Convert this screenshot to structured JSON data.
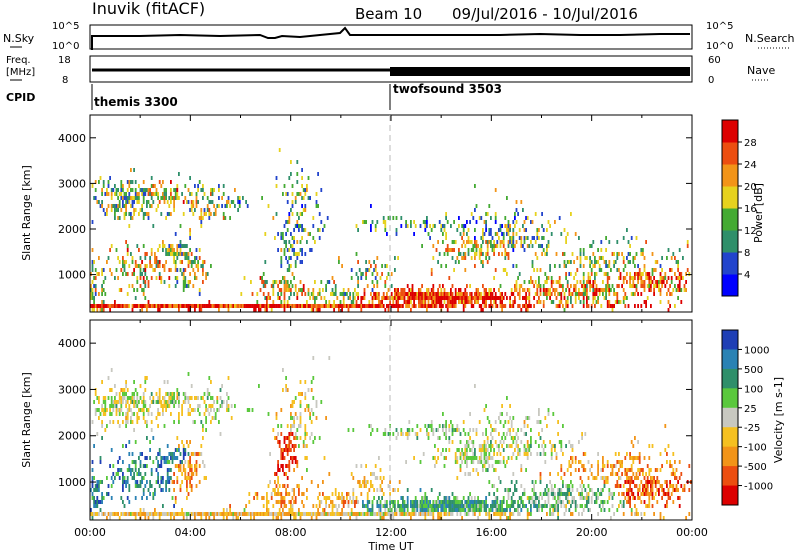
{
  "header": {
    "station": "Inuvik (fitACF)",
    "beam": "Beam 10",
    "date_range": "09/Jul/2016 - 10/Jul/2016"
  },
  "status_panels": {
    "nsky_label": "N.Sky",
    "nsearch_label": "N.Search",
    "nsky_ticks": [
      "10^5",
      "10^0"
    ],
    "nsearch_ticks": [
      "10^5",
      "10^0"
    ],
    "freq_label": "Freq.",
    "freq_unit": "[MHz]",
    "freq_ticks": [
      "18",
      "8"
    ],
    "nave_label": "Nave",
    "nave_ticks": [
      "60",
      "0"
    ],
    "cpid_label": "CPID",
    "cpid_segments": [
      {
        "name": "themis 3300",
        "start_hour": 0
      },
      {
        "name": "twofsound 3503",
        "start_hour": 12
      }
    ]
  },
  "chart_data": [
    {
      "type": "heatmap",
      "name": "power",
      "ylabel": "Slant Range [km]",
      "xlabel": "",
      "xlim": [
        0,
        24
      ],
      "ylim": [
        180,
        4500
      ],
      "yticks": [
        1000,
        2000,
        3000,
        4000
      ],
      "colorbar_label": "Power [dB]",
      "colorbar_ticks": [
        "4",
        "8",
        "12",
        "16",
        "20",
        "24",
        "28"
      ],
      "colorbar_colors": [
        "#0000ff",
        "#2244cc",
        "#2f8f6a",
        "#44aa33",
        "#e6d21e",
        "#f29418",
        "#ec4e10",
        "#dd0000"
      ]
    },
    {
      "type": "heatmap",
      "name": "velocity",
      "ylabel": "Slant Range [km]",
      "xlabel": "Time UT",
      "xlim": [
        0,
        24
      ],
      "ylim": [
        180,
        4500
      ],
      "yticks": [
        1000,
        2000,
        3000,
        4000
      ],
      "xticks": [
        "00:00",
        "04:00",
        "08:00",
        "12:00",
        "16:00",
        "20:00",
        "00:00"
      ],
      "colorbar_label": "Velocity [m s-1]",
      "colorbar_ticks": [
        "1000",
        "500",
        "100",
        "25",
        "-25",
        "-100",
        "-500",
        "-1000"
      ],
      "colorbar_colors": [
        "#1f3fb5",
        "#2a82b4",
        "#2f8f6a",
        "#5ac83c",
        "#c8c8c0",
        "#f5c020",
        "#f29418",
        "#ec4e10",
        "#dd0000"
      ]
    }
  ]
}
